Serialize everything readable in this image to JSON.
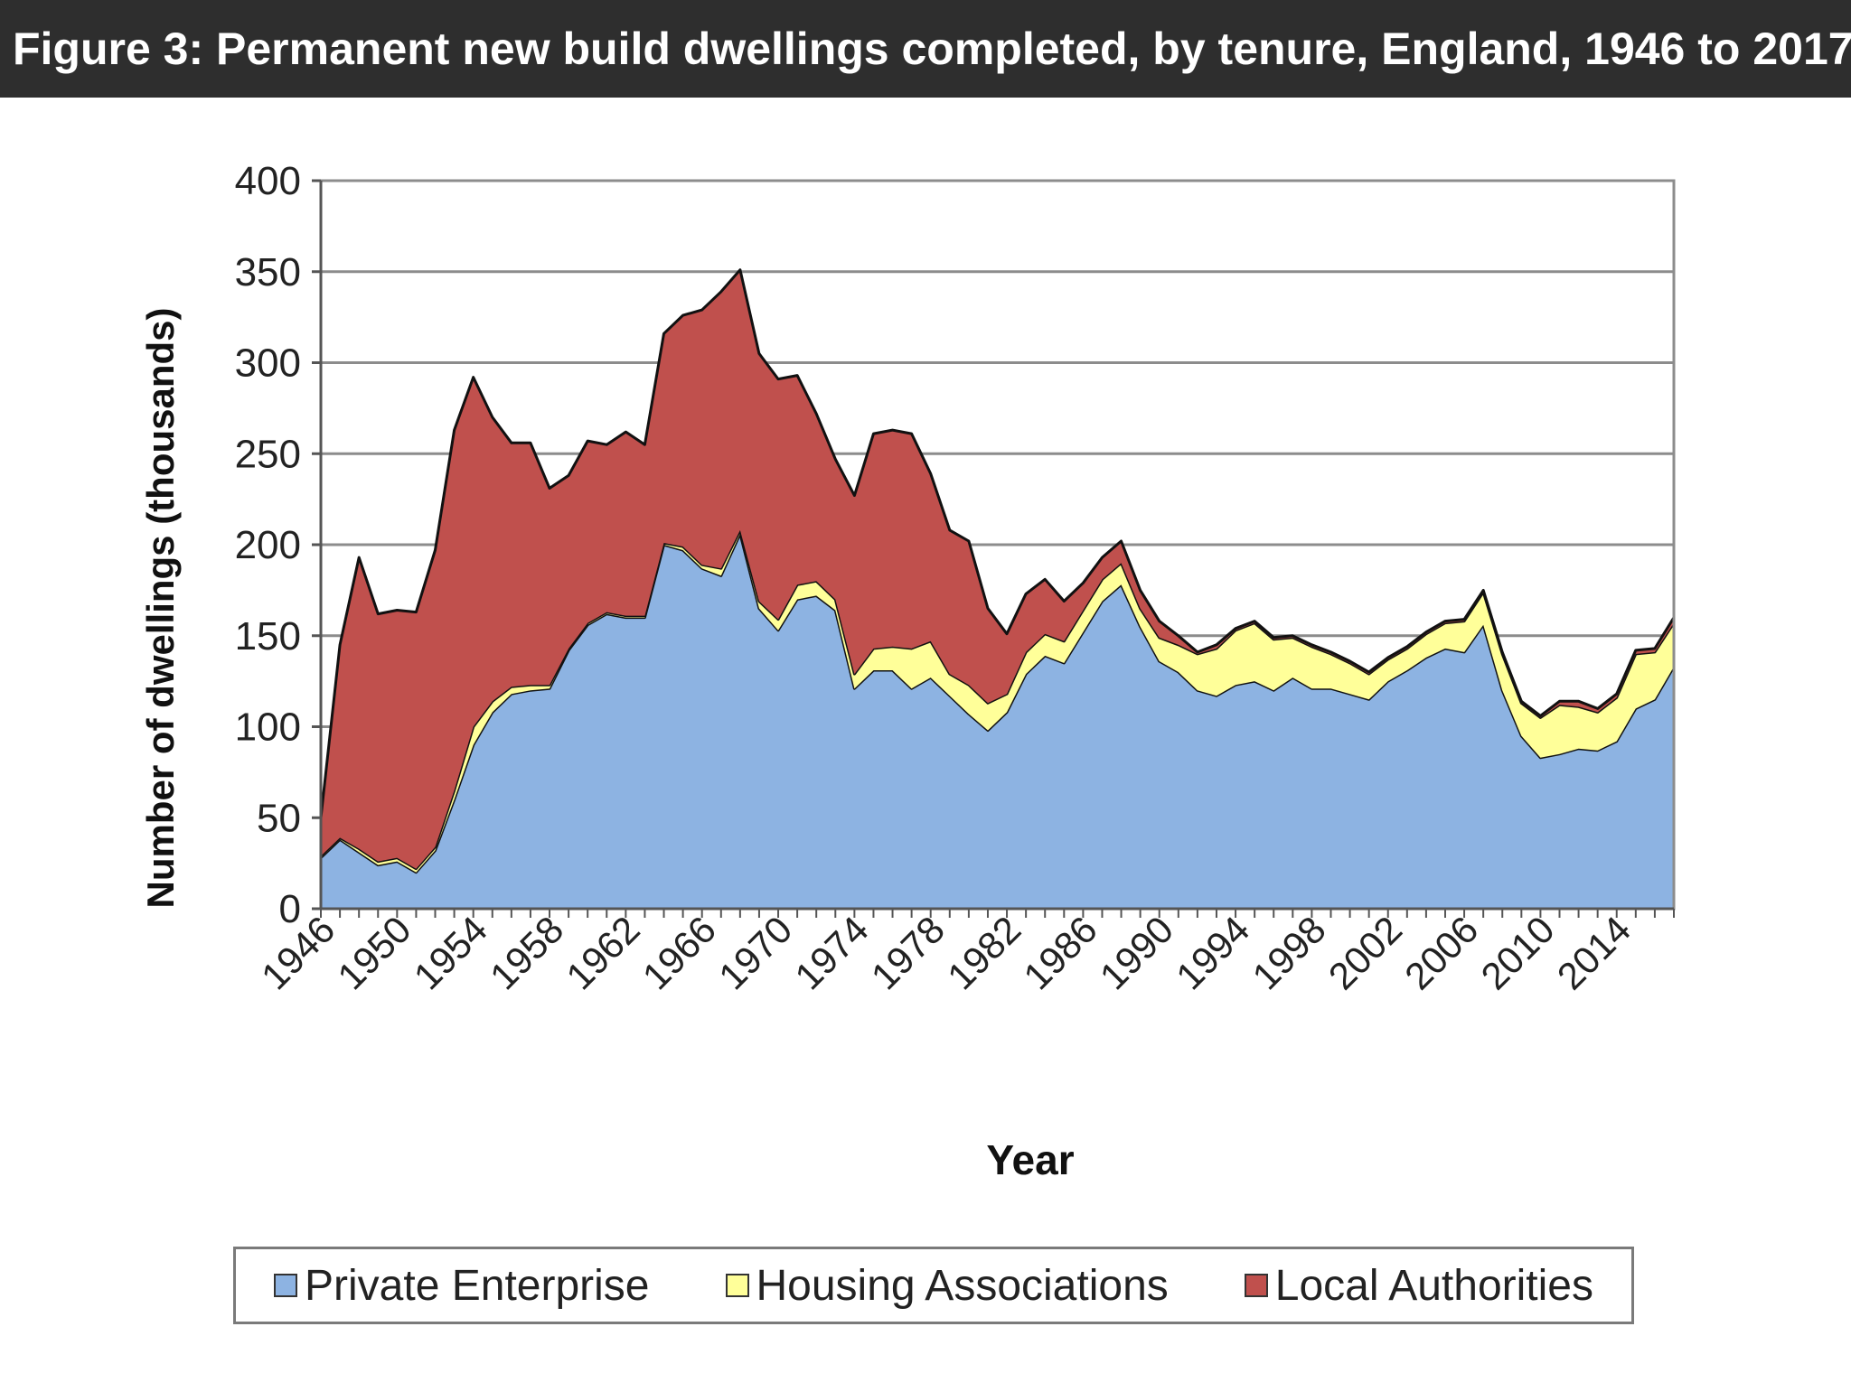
{
  "title": "Figure 3: Permanent new build dwellings completed, by tenure, England, 1946 to 2017",
  "chart_data": {
    "type": "area",
    "stacked": true,
    "title": "",
    "xlabel": "Year",
    "ylabel": "Number of dwellings (thousands)",
    "ylim": [
      0,
      400
    ],
    "yticks": [
      0,
      50,
      100,
      150,
      200,
      250,
      300,
      350,
      400
    ],
    "xtick_labels": [
      "1946",
      "1950",
      "1954",
      "1958",
      "1962",
      "1966",
      "1970",
      "1974",
      "1978",
      "1982",
      "1986",
      "1990",
      "1994",
      "1998",
      "2002",
      "2006",
      "2010",
      "2014"
    ],
    "grid": "horizontal",
    "legend_position": "bottom",
    "x": [
      1946,
      1947,
      1948,
      1949,
      1950,
      1951,
      1952,
      1953,
      1954,
      1955,
      1956,
      1957,
      1958,
      1959,
      1960,
      1961,
      1962,
      1963,
      1964,
      1965,
      1966,
      1967,
      1968,
      1969,
      1970,
      1971,
      1972,
      1973,
      1974,
      1975,
      1976,
      1977,
      1978,
      1979,
      1980,
      1981,
      1982,
      1983,
      1984,
      1985,
      1986,
      1987,
      1988,
      1989,
      1990,
      1991,
      1992,
      1993,
      1994,
      1995,
      1996,
      1997,
      1998,
      1999,
      2000,
      2001,
      2002,
      2003,
      2004,
      2005,
      2006,
      2007,
      2008,
      2009,
      2010,
      2011,
      2012,
      2013,
      2014,
      2015,
      2016,
      2017
    ],
    "series": [
      {
        "name": "Private Enterprise",
        "color": "#8db3e2",
        "values": [
          28,
          38,
          31,
          24,
          26,
          20,
          32,
          60,
          90,
          108,
          118,
          120,
          121,
          142,
          156,
          162,
          160,
          160,
          200,
          197,
          187,
          183,
          206,
          165,
          153,
          170,
          172,
          164,
          121,
          131,
          131,
          121,
          127,
          117,
          107,
          98,
          108,
          129,
          139,
          135,
          152,
          169,
          178,
          155,
          136,
          130,
          120,
          117,
          123,
          125,
          120,
          127,
          121,
          121,
          118,
          115,
          125,
          131,
          138,
          143,
          141,
          156,
          120,
          95,
          83,
          85,
          88,
          87,
          92,
          110,
          115,
          133
        ]
      },
      {
        "name": "Housing Associations",
        "color": "#ffff99",
        "values": [
          1,
          1,
          2,
          2,
          2,
          2,
          2,
          5,
          10,
          6,
          4,
          3,
          2,
          1,
          1,
          1,
          1,
          1,
          1,
          2,
          2,
          4,
          2,
          4,
          6,
          8,
          8,
          6,
          8,
          12,
          13,
          22,
          20,
          12,
          16,
          15,
          10,
          12,
          12,
          12,
          12,
          12,
          12,
          10,
          13,
          15,
          20,
          26,
          30,
          32,
          28,
          22,
          23,
          19,
          17,
          14,
          12,
          12,
          13,
          14,
          17,
          18,
          20,
          18,
          22,
          27,
          23,
          21,
          24,
          30,
          26,
          24
        ]
      },
      {
        "name": "Local Authorities",
        "color": "#c0504d",
        "values": [
          21,
          106,
          160,
          136,
          136,
          141,
          163,
          198,
          192,
          156,
          134,
          133,
          108,
          95,
          100,
          92,
          101,
          94,
          115,
          127,
          140,
          152,
          143,
          136,
          132,
          115,
          92,
          77,
          98,
          118,
          119,
          118,
          92,
          79,
          79,
          52,
          33,
          32,
          30,
          22,
          15,
          12,
          12,
          10,
          9,
          5,
          1,
          2,
          1,
          1,
          1,
          1,
          1,
          1,
          1,
          1,
          1,
          1,
          1,
          1,
          1,
          1,
          1,
          1,
          1,
          2,
          3,
          2,
          2,
          2,
          2,
          3
        ]
      }
    ]
  }
}
